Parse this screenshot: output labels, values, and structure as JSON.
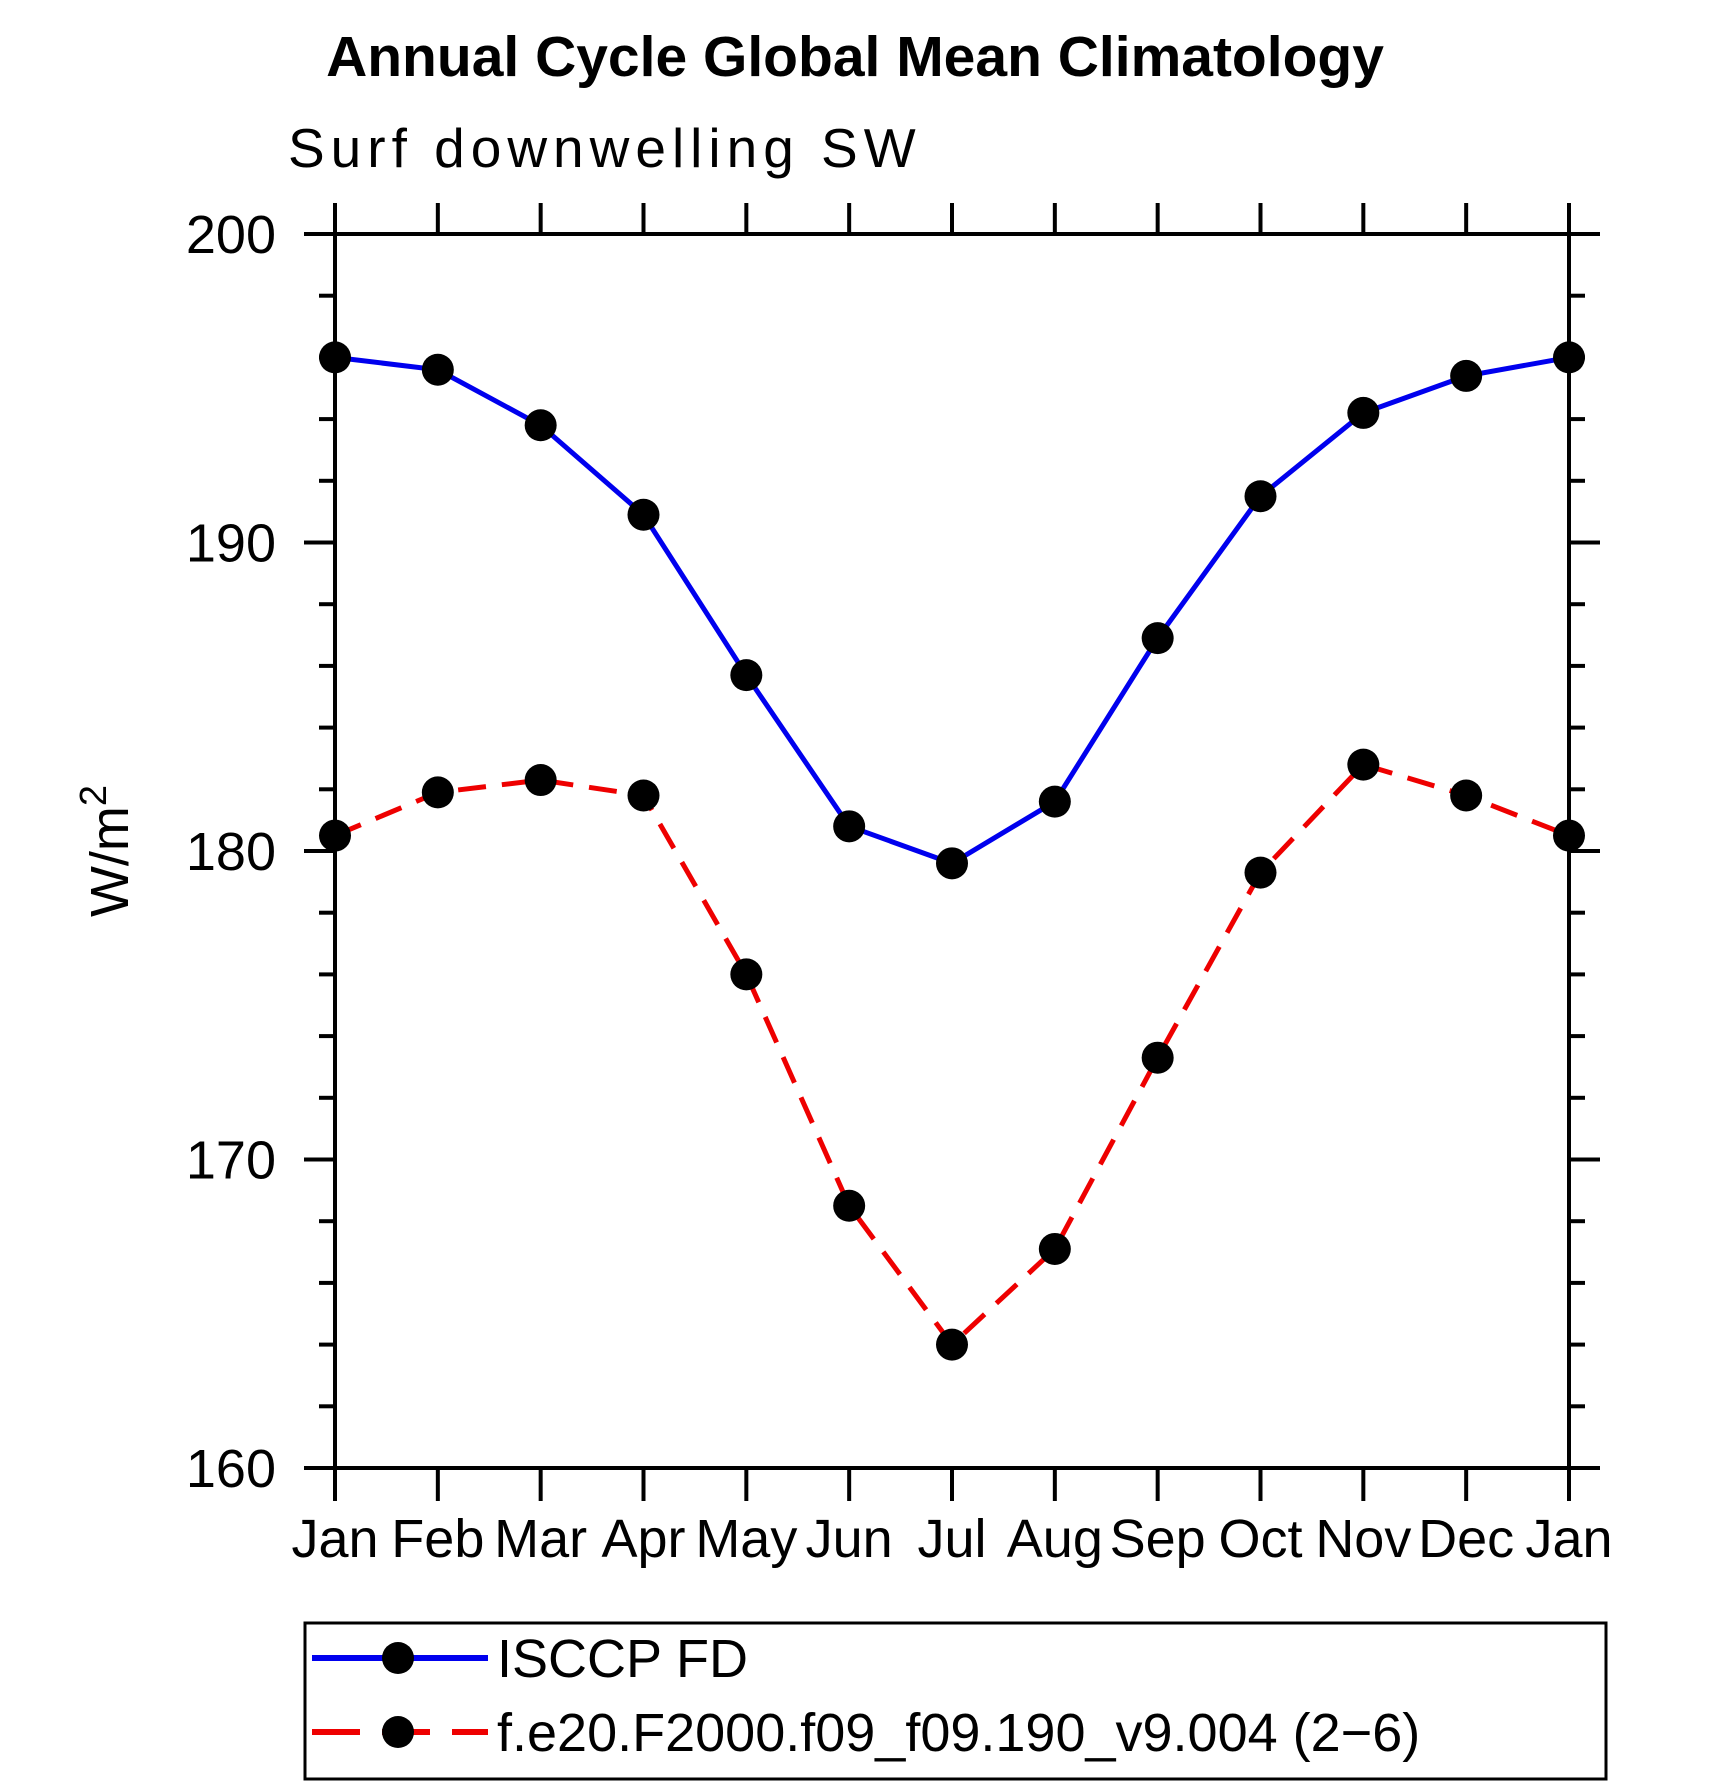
{
  "chart_data": {
    "type": "line",
    "title": "Annual Cycle Global Mean Climatology",
    "subtitle": "Surf downwelling SW",
    "ylabel": "W/m",
    "ylabel_sup": "2",
    "ylim": [
      160,
      200
    ],
    "y_major_ticks": [
      200,
      190,
      180,
      170,
      160
    ],
    "y_minor_step": 2,
    "grid": false,
    "legend_position": "bottom",
    "categories": [
      "Jan",
      "Feb",
      "Mar",
      "Apr",
      "May",
      "Jun",
      "Jul",
      "Aug",
      "Sep",
      "Oct",
      "Nov",
      "Dec",
      "Jan"
    ],
    "series": [
      {
        "name": "ISCCP FD",
        "color": "#0000ee",
        "style": "solid",
        "marker": "black-circle",
        "values": [
          196.0,
          195.6,
          193.8,
          190.9,
          185.7,
          180.8,
          179.6,
          181.6,
          186.9,
          191.5,
          194.2,
          195.4,
          196.0
        ]
      },
      {
        "name": "f.e20.F2000.f09_f09.190_v9.004 (2−6)",
        "color": "#ee0000",
        "style": "dashed",
        "marker": "black-circle",
        "values": [
          180.5,
          181.9,
          182.3,
          181.8,
          176.0,
          168.5,
          164.0,
          167.1,
          173.3,
          179.3,
          182.8,
          181.8,
          180.5
        ]
      }
    ],
    "marker_color": "#000000",
    "axis_color": "#000000"
  }
}
